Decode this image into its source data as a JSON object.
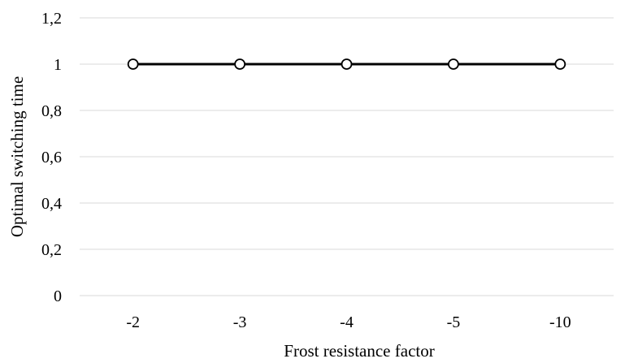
{
  "chart_data": {
    "type": "line",
    "title": "",
    "xlabel": "Frost resistance factor",
    "ylabel": "Optimal switching time",
    "categories": [
      "-2",
      "-3",
      "-4",
      "-5",
      "-10"
    ],
    "series": [
      {
        "values": [
          1,
          1,
          1,
          1,
          1
        ]
      }
    ],
    "ylim": [
      0,
      1.2
    ],
    "yticks": [
      0,
      0.2,
      0.4,
      0.6,
      0.8,
      1,
      1.2
    ],
    "ytick_labels": [
      "0",
      "0,2",
      "0,4",
      "0,6",
      "0,8",
      "1",
      "1,2"
    ],
    "grid": true,
    "legend": "none",
    "colors": {
      "line": "#000000",
      "marker_fill": "#ffffff",
      "grid": "#d9d9d9"
    }
  }
}
